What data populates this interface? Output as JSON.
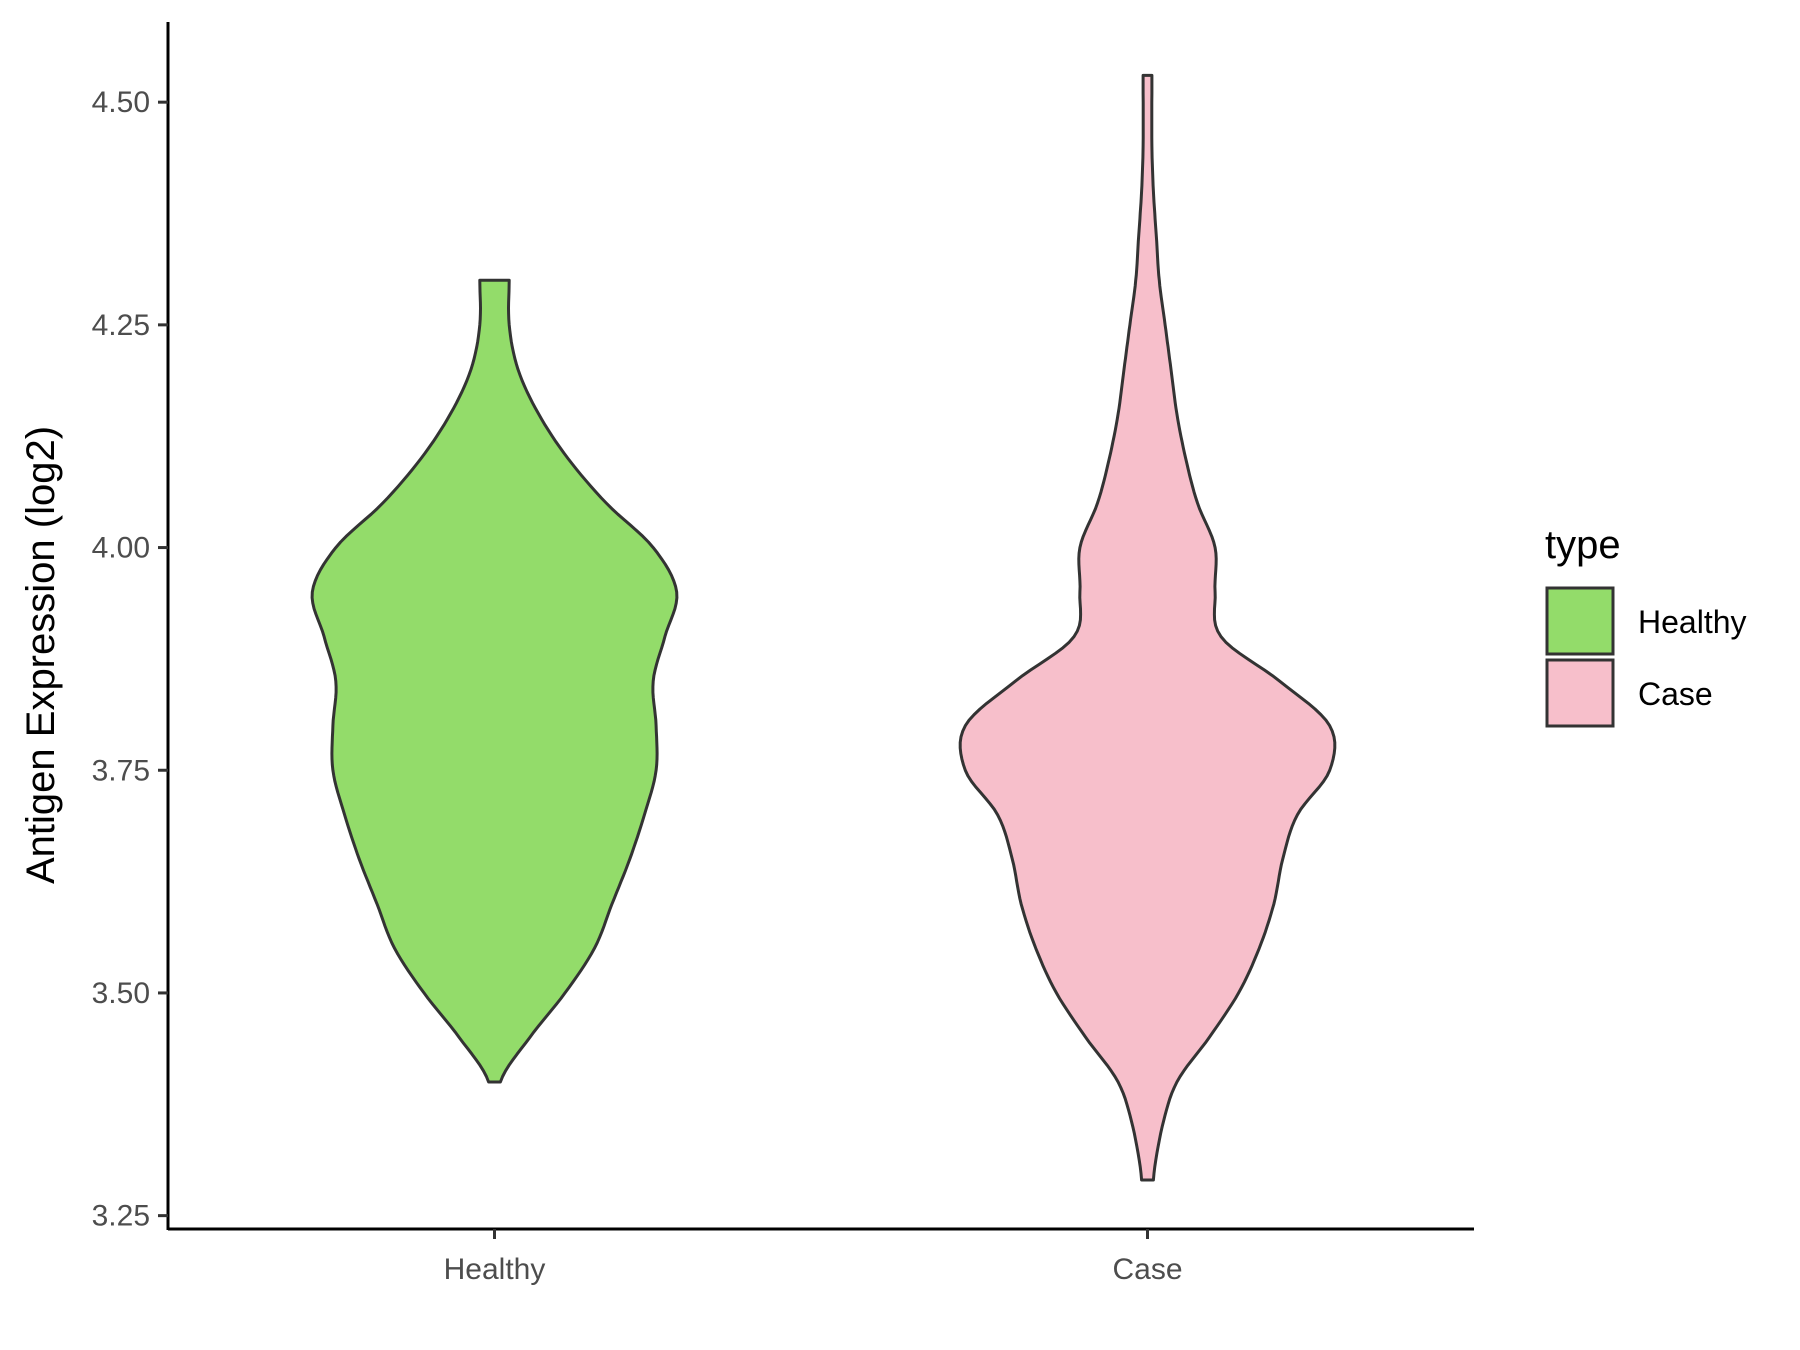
{
  "chart_data": {
    "type": "violin",
    "ylabel": "Antigen Expression (log2)",
    "xlabel": "",
    "ylim": [
      3.235,
      4.59
    ],
    "yticks": [
      "3.25",
      "3.50",
      "3.75",
      "4.00",
      "4.25",
      "4.50"
    ],
    "categories": [
      "Healthy",
      "Case"
    ],
    "legend": {
      "title": "type",
      "placement": "right"
    },
    "series": [
      {
        "name": "Healthy",
        "color": "#93DC6A",
        "min": 3.4,
        "max": 4.3,
        "density_profile": [
          [
            3.4,
            0.02
          ],
          [
            3.45,
            0.12
          ],
          [
            3.5,
            0.24
          ],
          [
            3.55,
            0.34
          ],
          [
            3.6,
            0.4
          ],
          [
            3.65,
            0.46
          ],
          [
            3.7,
            0.51
          ],
          [
            3.75,
            0.55
          ],
          [
            3.8,
            0.55
          ],
          [
            3.85,
            0.54
          ],
          [
            3.9,
            0.58
          ],
          [
            3.95,
            0.62
          ],
          [
            4.0,
            0.54
          ],
          [
            4.05,
            0.38
          ],
          [
            4.1,
            0.25
          ],
          [
            4.15,
            0.15
          ],
          [
            4.2,
            0.08
          ],
          [
            4.25,
            0.05
          ],
          [
            4.3,
            0.05
          ]
        ]
      },
      {
        "name": "Case",
        "color": "#F7BFCB",
        "min": 3.29,
        "max": 4.53,
        "density_profile": [
          [
            3.29,
            0.02
          ],
          [
            3.35,
            0.05
          ],
          [
            3.4,
            0.1
          ],
          [
            3.45,
            0.21
          ],
          [
            3.5,
            0.31
          ],
          [
            3.55,
            0.38
          ],
          [
            3.6,
            0.43
          ],
          [
            3.65,
            0.46
          ],
          [
            3.7,
            0.51
          ],
          [
            3.75,
            0.62
          ],
          [
            3.8,
            0.62
          ],
          [
            3.85,
            0.45
          ],
          [
            3.9,
            0.25
          ],
          [
            3.95,
            0.23
          ],
          [
            4.0,
            0.23
          ],
          [
            4.05,
            0.17
          ],
          [
            4.1,
            0.13
          ],
          [
            4.15,
            0.1
          ],
          [
            4.2,
            0.08
          ],
          [
            4.25,
            0.06
          ],
          [
            4.3,
            0.04
          ],
          [
            4.35,
            0.03
          ],
          [
            4.4,
            0.02
          ],
          [
            4.45,
            0.015
          ],
          [
            4.53,
            0.015
          ]
        ]
      }
    ]
  }
}
